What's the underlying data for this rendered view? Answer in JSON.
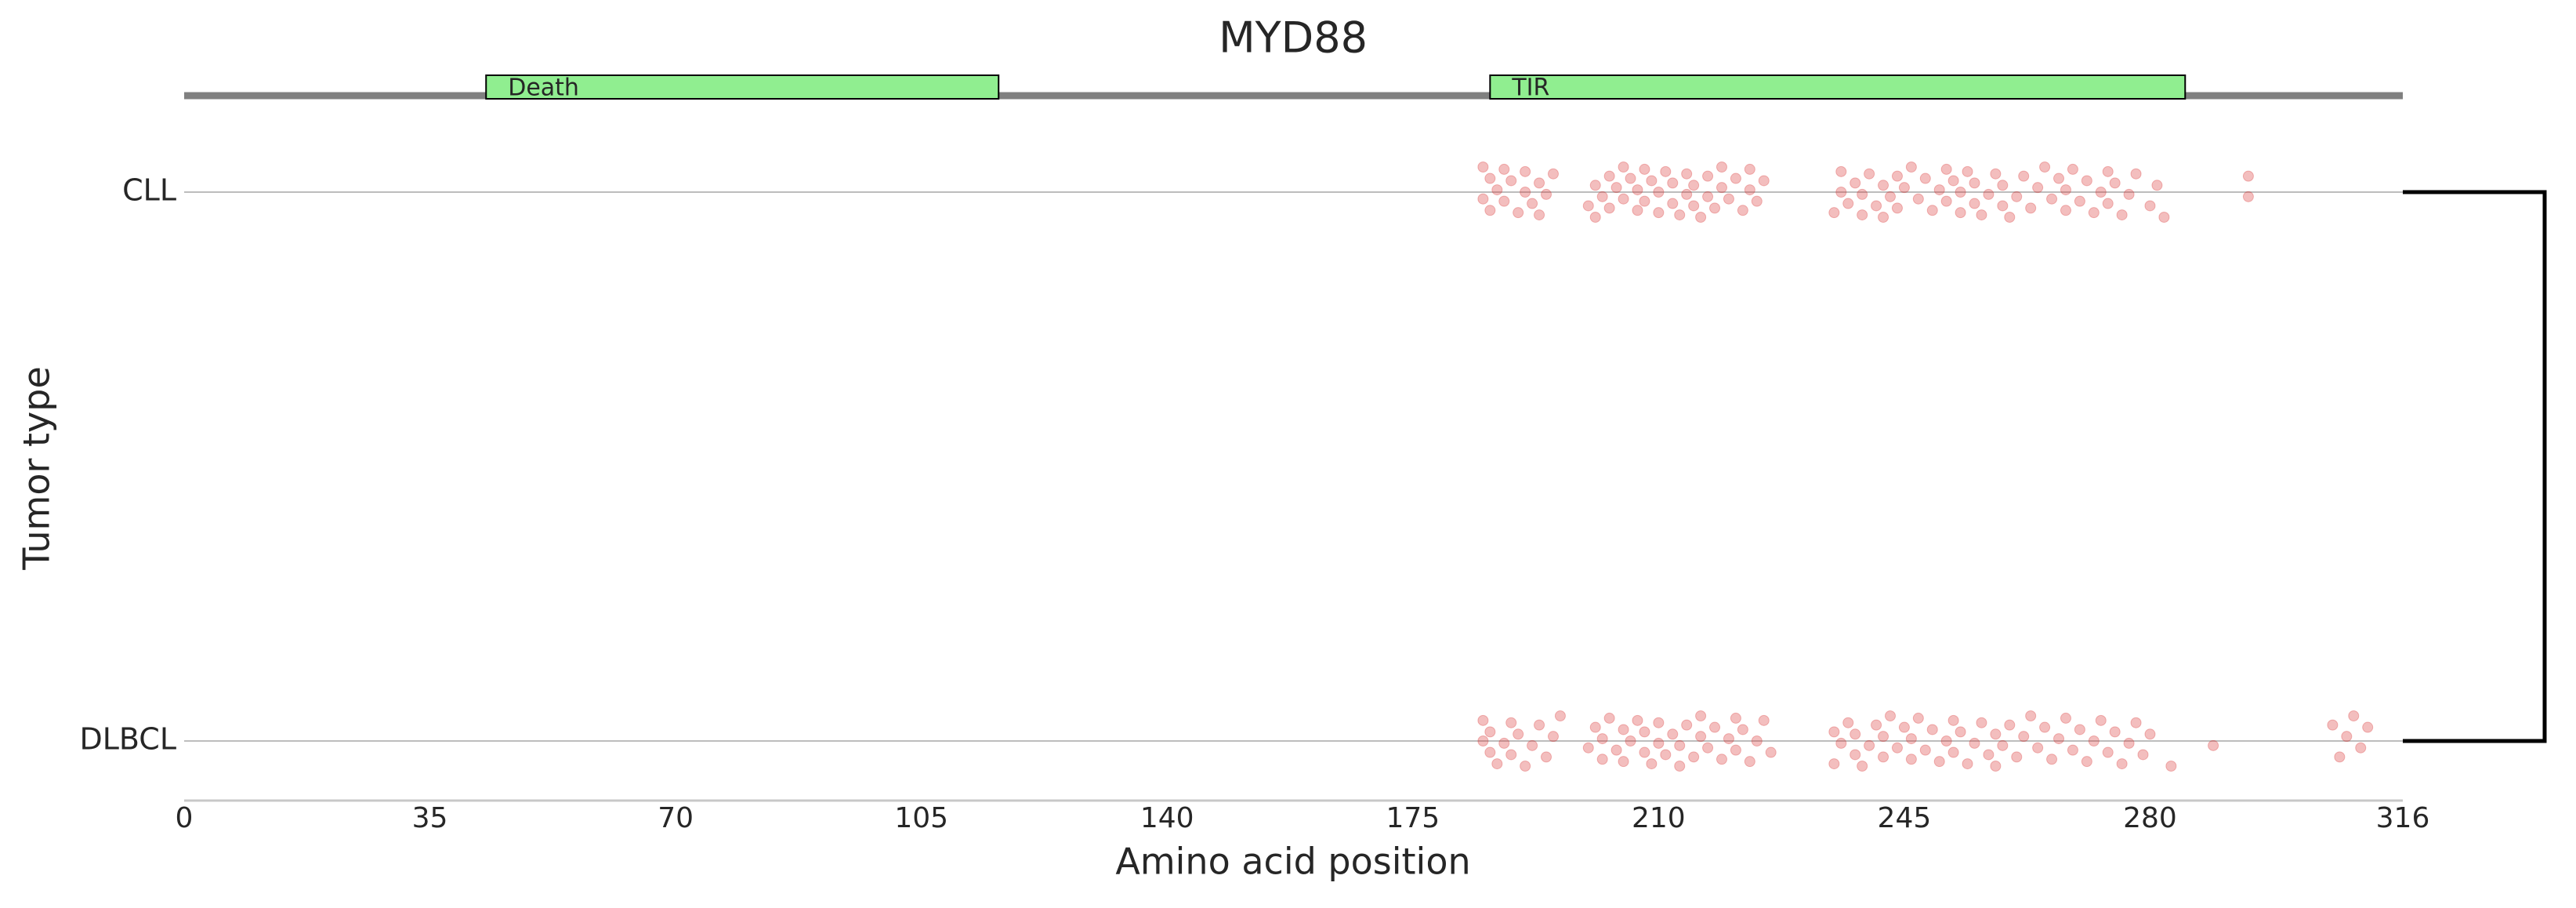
{
  "chart_data": {
    "type": "strip",
    "title": "MYD88",
    "x_label": "Amino acid position",
    "y_label": "Tumor type",
    "categories": [
      "CLL",
      "DLBCL"
    ],
    "x": [
      [
        185,
        185,
        186,
        186,
        187,
        188,
        188,
        189,
        190,
        191,
        191,
        192,
        193,
        193,
        194,
        195,
        200,
        201,
        201,
        202,
        203,
        203,
        204,
        205,
        205,
        206,
        207,
        207,
        208,
        208,
        209,
        210,
        210,
        211,
        212,
        212,
        213,
        214,
        214,
        215,
        215,
        216,
        217,
        217,
        218,
        219,
        219,
        220,
        221,
        222,
        223,
        223,
        224,
        225,
        235,
        236,
        236,
        237,
        238,
        239,
        239,
        240,
        241,
        242,
        242,
        243,
        244,
        244,
        245,
        246,
        247,
        248,
        249,
        250,
        251,
        251,
        252,
        253,
        253,
        254,
        255,
        255,
        256,
        257,
        258,
        259,
        259,
        260,
        261,
        262,
        263,
        264,
        265,
        266,
        267,
        268,
        268,
        269,
        270,
        271,
        272,
        273,
        274,
        274,
        275,
        276,
        277,
        278,
        280,
        281,
        282,
        294,
        294
      ],
      [
        185,
        185,
        186,
        186,
        187,
        188,
        189,
        189,
        190,
        191,
        192,
        193,
        194,
        195,
        196,
        200,
        201,
        202,
        202,
        203,
        204,
        205,
        205,
        206,
        207,
        208,
        208,
        209,
        210,
        210,
        211,
        212,
        213,
        213,
        214,
        215,
        216,
        216,
        217,
        218,
        219,
        220,
        221,
        221,
        222,
        223,
        224,
        225,
        226,
        235,
        235,
        236,
        237,
        238,
        238,
        239,
        240,
        241,
        242,
        242,
        243,
        244,
        245,
        246,
        246,
        247,
        248,
        249,
        250,
        251,
        252,
        252,
        253,
        254,
        255,
        256,
        257,
        258,
        258,
        259,
        260,
        261,
        262,
        263,
        264,
        265,
        266,
        267,
        268,
        269,
        270,
        271,
        272,
        273,
        274,
        275,
        276,
        277,
        278,
        279,
        280,
        283,
        289,
        306,
        307,
        308,
        309,
        310,
        311
      ]
    ],
    "color": "#d62728",
    "domains": [
      {
        "name": "Death",
        "start": 43,
        "end": 116
      },
      {
        "name": "TIR",
        "start": 186,
        "end": 285
      }
    ],
    "domain_color": "#90ee90",
    "xlim": [
      0,
      316
    ],
    "xticks": [
      0,
      35,
      70,
      105,
      140,
      175,
      210,
      245,
      280,
      316
    ]
  }
}
